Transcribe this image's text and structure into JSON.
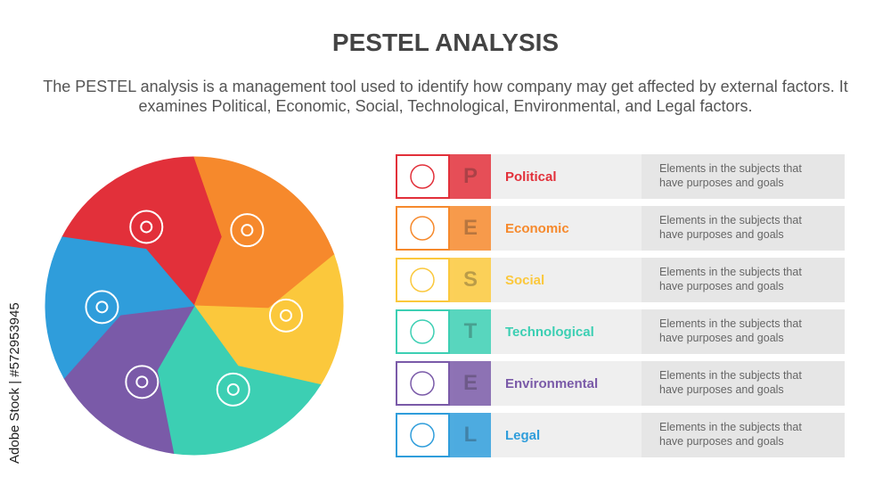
{
  "header": {
    "title": "PESTEL ANALYSIS",
    "description": "The PESTEL analysis is a management tool used to identify how company may get affected by external factors. It examines Political, Economic, Social, Technological, Environmental, and Legal factors."
  },
  "watermark": "Adobe Stock | #572953945",
  "items": [
    {
      "letter": "P",
      "label": "Political",
      "description": "Elements in the subjects that have purposes and goals",
      "color": "#e2303a"
    },
    {
      "letter": "E",
      "label": "Economic",
      "description": "Elements in the subjects that have purposes and goals",
      "color": "#f6892c"
    },
    {
      "letter": "S",
      "label": "Social",
      "description": "Elements in the subjects that have purposes and goals",
      "color": "#fbc83c"
    },
    {
      "letter": "T",
      "label": "Technological",
      "description": "Elements in the subjects that have purposes and goals",
      "color": "#3ccfb3"
    },
    {
      "letter": "E",
      "label": "Environmental",
      "description": "Elements in the subjects that have purposes and goals",
      "color": "#7a5aa8"
    },
    {
      "letter": "L",
      "label": "Legal",
      "description": "Elements in the subjects that have purposes and goals",
      "color": "#2f9ddb"
    }
  ]
}
